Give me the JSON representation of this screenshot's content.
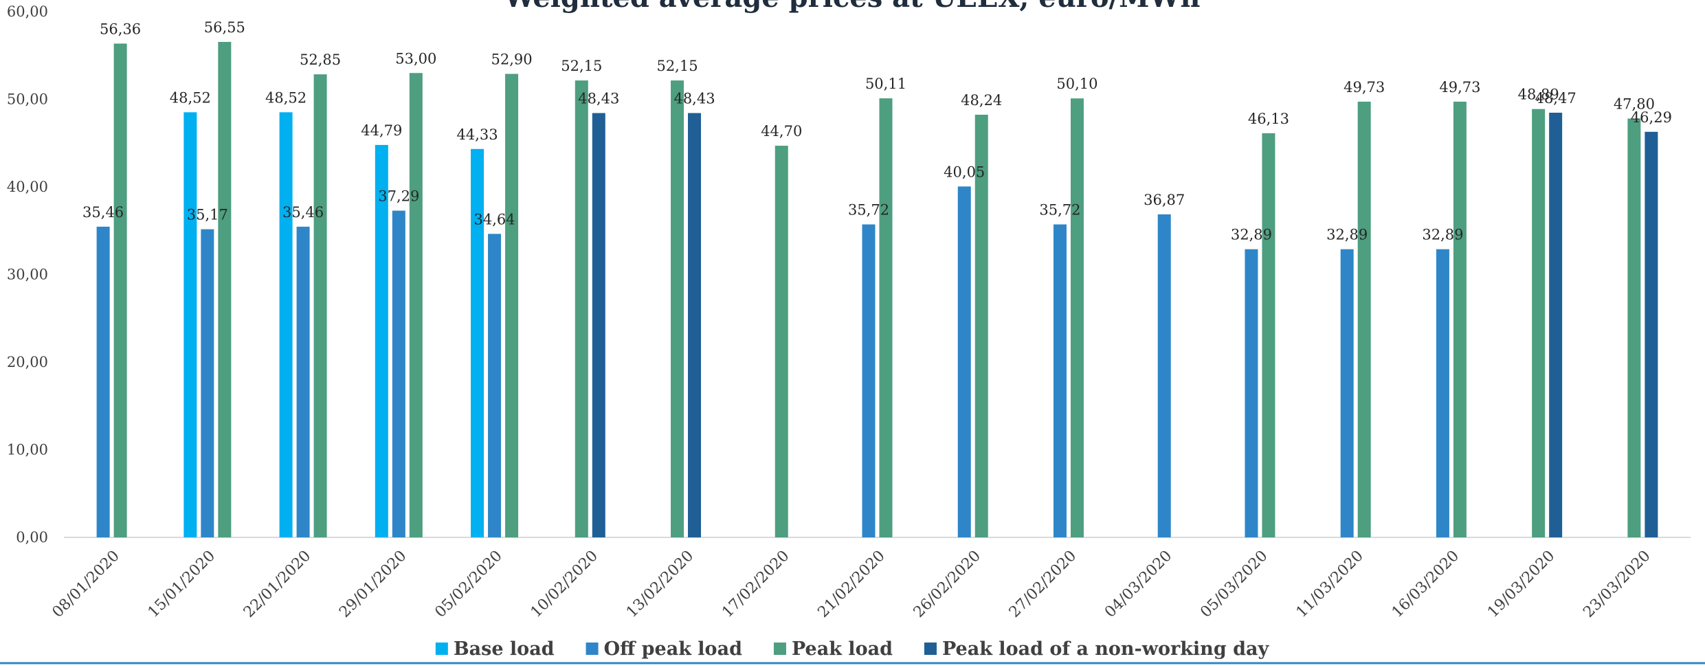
{
  "chart_data": {
    "type": "bar",
    "title": "Weighted average prices at UEEX, euro/MWh",
    "xlabel": "",
    "ylabel": "",
    "ylim": [
      0,
      60
    ],
    "yticks": [
      "0,00",
      "10,00",
      "20,00",
      "30,00",
      "40,00",
      "50,00",
      "60,00"
    ],
    "grid": false,
    "legend_position": "bottom",
    "categories": [
      "08/01/2020",
      "15/01/2020",
      "22/01/2020",
      "29/01/2020",
      "05/02/2020",
      "10/02/2020",
      "13/02/2020",
      "17/02/2020",
      "21/02/2020",
      "26/02/2020",
      "27/02/2020",
      "04/03/2020",
      "05/03/2020",
      "11/03/2020",
      "16/03/2020",
      "19/03/2020",
      "23/03/2020"
    ],
    "series": [
      {
        "name": "Base load",
        "color": "#00b0f0",
        "values": [
          null,
          48.52,
          48.52,
          44.79,
          44.33,
          null,
          null,
          null,
          null,
          null,
          null,
          null,
          null,
          null,
          null,
          null,
          null
        ],
        "labels": [
          null,
          "48,52",
          "48,52",
          "44,79",
          "44,33",
          null,
          null,
          null,
          null,
          null,
          null,
          null,
          null,
          null,
          null,
          null,
          null
        ]
      },
      {
        "name": "Off peak load",
        "color": "#2e86c8",
        "values": [
          35.46,
          35.17,
          35.46,
          37.29,
          34.64,
          null,
          null,
          null,
          35.72,
          40.05,
          35.72,
          36.87,
          32.89,
          32.89,
          32.89,
          null,
          null
        ],
        "labels": [
          "35,46",
          "35,17",
          "35,46",
          "37,29",
          "34,64",
          null,
          null,
          null,
          "35,72",
          "40,05",
          "35,72",
          "36,87",
          "32,89",
          "32,89",
          "32,89",
          null,
          null
        ]
      },
      {
        "name": "Peak load",
        "color": "#4e9e80",
        "values": [
          56.36,
          56.55,
          52.85,
          53.0,
          52.9,
          52.15,
          52.15,
          44.7,
          50.11,
          48.24,
          50.1,
          null,
          46.13,
          49.73,
          49.73,
          48.89,
          47.8
        ],
        "labels": [
          "56,36",
          "56,55",
          "52,85",
          "53,00",
          "52,90",
          "52,15",
          "52,15",
          "44,70",
          "50,11",
          "48,24",
          "50,10",
          null,
          "46,13",
          "49,73",
          "49,73",
          "48,89",
          "47,80"
        ]
      },
      {
        "name": "Peak load of a non-working day",
        "color": "#1f5f96",
        "values": [
          null,
          null,
          null,
          null,
          null,
          48.43,
          48.43,
          null,
          null,
          null,
          null,
          null,
          null,
          null,
          null,
          48.47,
          46.29
        ],
        "labels": [
          null,
          null,
          null,
          null,
          null,
          "48,43",
          "48,43",
          null,
          null,
          null,
          null,
          null,
          null,
          null,
          null,
          "48,47",
          "46,29"
        ]
      }
    ]
  }
}
